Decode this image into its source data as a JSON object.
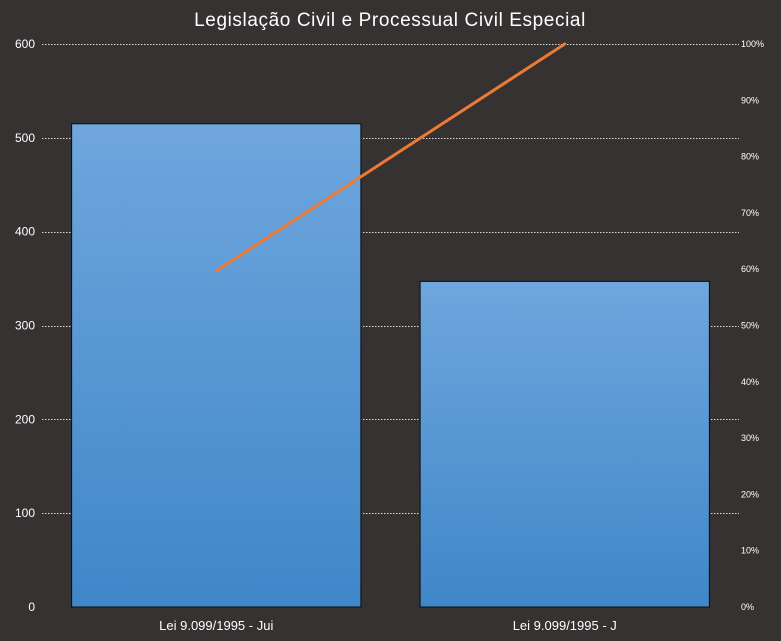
{
  "chart_data": {
    "type": "bar",
    "title": "Legislação Civil e Processual Civil Especial",
    "categories": [
      "Lei 9.099/1995 - Jui",
      "Lei 9.099/1995 - J"
    ],
    "series": [
      {
        "values": [
          515,
          347
        ]
      },
      {
        "values": [
          59.7,
          100
        ]
      }
    ],
    "ylim": [
      0,
      600
    ],
    "y_ticks": [
      "0",
      "100",
      "200",
      "300",
      "400",
      "500",
      "600"
    ],
    "y2lim": [
      0,
      100
    ],
    "y2_ticks": [
      "0%",
      "10%",
      "20%",
      "30%",
      "40%",
      "50%",
      "60%",
      "70%",
      "80%",
      "90%",
      "100%"
    ],
    "grid": true,
    "legend": "none"
  },
  "colors": {
    "background": "#353231",
    "bar_top": "#6fa6dd",
    "bar_bottom": "#3f87c9",
    "bar_stroke": "#0d0d0d",
    "line": "#ee7a35",
    "grid": "#d9d9d9",
    "text": "#ffffff"
  }
}
